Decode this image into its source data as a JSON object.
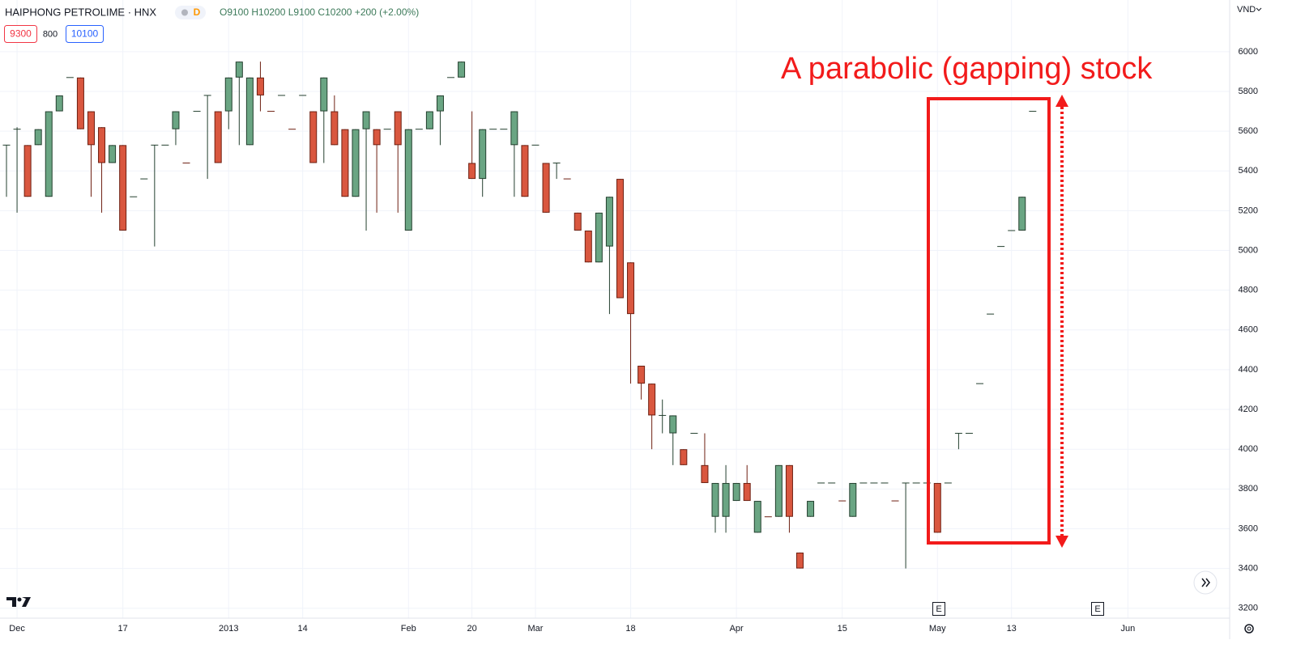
{
  "header": {
    "symbol": "HAIPHONG PETROLIME · HNX",
    "interval": "D",
    "ohlc": "O9100 H10200 L9100 C10200 +200 (+2.00%)",
    "bid": "9300",
    "spread": "800",
    "ask": "10100"
  },
  "annotation": {
    "text": "A parabolic (gapping) stock"
  },
  "events": [
    "E",
    "E"
  ],
  "chart_data": {
    "type": "candlestick",
    "currency": "VND",
    "up_color": "#6aa583",
    "down_color": "#d9573f",
    "up_border": "#24402f",
    "down_border": "#6e2012",
    "grid": true,
    "ylim": [
      3150,
      6260
    ],
    "yticks": [
      3200,
      3400,
      3600,
      3800,
      4000,
      4200,
      4400,
      4600,
      4800,
      5000,
      5200,
      5400,
      5600,
      5800,
      6000
    ],
    "categories": [
      null,
      "Dec",
      null,
      null,
      null,
      null,
      null,
      null,
      null,
      null,
      null,
      "17",
      null,
      null,
      null,
      null,
      null,
      null,
      null,
      null,
      null,
      "2013",
      null,
      null,
      null,
      null,
      null,
      null,
      "14",
      null,
      null,
      null,
      null,
      null,
      null,
      null,
      null,
      null,
      "Feb",
      null,
      null,
      null,
      null,
      null,
      "20",
      null,
      null,
      null,
      null,
      null,
      "Mar",
      null,
      null,
      null,
      null,
      null,
      null,
      null,
      null,
      "18",
      null,
      null,
      null,
      null,
      null,
      null,
      null,
      null,
      null,
      "Apr",
      null,
      null,
      null,
      null,
      null,
      null,
      null,
      null,
      null,
      "15",
      null,
      null,
      null,
      null,
      null,
      null,
      null,
      null,
      "May",
      null,
      null,
      null,
      null,
      null,
      null,
      "13",
      null,
      null,
      null,
      null,
      null,
      null,
      null,
      null,
      null,
      null,
      "Jun",
      null,
      null,
      null,
      null,
      null,
      null,
      null,
      null,
      null
    ],
    "open": [
      5530,
      5610,
      5530,
      5530,
      5270,
      5700,
      5870,
      5870,
      5700,
      5620,
      5440,
      5530,
      5270,
      5360,
      5530,
      5530,
      5610,
      5440,
      5700,
      5780,
      5700,
      5700,
      5870,
      5530,
      5870,
      5700,
      5780,
      5610,
      5780,
      5700,
      5700,
      5700,
      5610,
      5270,
      5610,
      5610,
      5610,
      5700,
      5100,
      5610,
      5610,
      5700,
      5870,
      5870,
      5440,
      5360,
      5610,
      5610,
      5530,
      5530,
      5530,
      5440,
      5440,
      5360,
      5190,
      5100,
      4940,
      5020,
      5360,
      4940,
      4420,
      4330,
      4170,
      4080,
      4000,
      4080,
      3920,
      3660,
      3660,
      3740,
      3830,
      3580,
      3660,
      3660,
      3920,
      3480,
      3660,
      3830,
      3830,
      3740,
      3660,
      3830,
      3830,
      3830,
      3740,
      3830,
      3830,
      3830,
      3830,
      3830,
      4080,
      4080,
      4330,
      4680,
      5020,
      5100,
      5100,
      5700,
      null,
      null,
      null,
      null,
      null,
      null,
      null,
      null,
      null,
      null,
      null,
      null,
      null,
      null,
      null,
      null,
      null,
      null
    ],
    "high": [
      5530,
      5620,
      5530,
      5610,
      5700,
      5780,
      5870,
      5870,
      5700,
      5620,
      5530,
      5530,
      5270,
      5360,
      5530,
      5530,
      5700,
      5440,
      5700,
      5780,
      5700,
      5870,
      5950,
      5870,
      5950,
      5700,
      5780,
      5610,
      5780,
      5700,
      5870,
      5780,
      5610,
      5610,
      5700,
      5610,
      5610,
      5700,
      5610,
      5610,
      5700,
      5780,
      5870,
      5950,
      5700,
      5610,
      5610,
      5610,
      5700,
      5530,
      5530,
      5440,
      5440,
      5360,
      5190,
      5100,
      5190,
      5270,
      5360,
      4940,
      4420,
      4330,
      4250,
      4170,
      4000,
      4080,
      4080,
      3830,
      3920,
      3830,
      3920,
      3740,
      3660,
      3920,
      3920,
      3480,
      3740,
      3830,
      3830,
      3740,
      3830,
      3830,
      3830,
      3830,
      3740,
      3830,
      3830,
      3830,
      3830,
      3830,
      4080,
      4080,
      4330,
      4680,
      5020,
      5100,
      5270,
      5700,
      null,
      null,
      null,
      null,
      null,
      null,
      null,
      null,
      null,
      null,
      null,
      null,
      null,
      null,
      null,
      null,
      null,
      null
    ],
    "low": [
      5270,
      5190,
      5270,
      5530,
      5270,
      5700,
      5870,
      5610,
      5270,
      5190,
      5440,
      5100,
      5270,
      5360,
      5020,
      5530,
      5530,
      5440,
      5700,
      5360,
      5440,
      5610,
      5530,
      5530,
      5700,
      5700,
      5780,
      5610,
      5780,
      5440,
      5440,
      5530,
      5270,
      5270,
      5100,
      5190,
      5610,
      5190,
      5100,
      5610,
      5610,
      5530,
      5870,
      5870,
      5360,
      5270,
      5610,
      5610,
      5270,
      5270,
      5530,
      5190,
      5360,
      5360,
      5100,
      4940,
      4940,
      4680,
      4760,
      4330,
      4250,
      4000,
      4080,
      3920,
      3920,
      4080,
      3830,
      3580,
      3580,
      3740,
      3740,
      3580,
      3660,
      3660,
      3580,
      3400,
      3660,
      3830,
      3830,
      3740,
      3660,
      3830,
      3830,
      3830,
      3740,
      3400,
      3830,
      3830,
      3580,
      3830,
      4000,
      4080,
      4330,
      4680,
      5020,
      5100,
      5100,
      5700,
      null,
      null,
      null,
      null,
      null,
      null,
      null,
      null,
      null,
      null,
      null,
      null,
      null,
      null,
      null,
      null,
      null,
      null
    ],
    "close": [
      5530,
      5610,
      5270,
      5610,
      5700,
      5780,
      5870,
      5610,
      5530,
      5440,
      5530,
      5100,
      5270,
      5360,
      5530,
      5530,
      5700,
      5440,
      5700,
      5780,
      5440,
      5870,
      5950,
      5870,
      5780,
      5700,
      5780,
      5610,
      5780,
      5440,
      5870,
      5530,
      5270,
      5610,
      5700,
      5530,
      5610,
      5530,
      5610,
      5610,
      5700,
      5780,
      5870,
      5950,
      5360,
      5610,
      5610,
      5610,
      5700,
      5270,
      5530,
      5190,
      5440,
      5360,
      5100,
      4940,
      5190,
      5270,
      4760,
      4680,
      4330,
      4170,
      4170,
      4170,
      3920,
      4080,
      3830,
      3830,
      3830,
      3830,
      3740,
      3740,
      3660,
      3920,
      3660,
      3400,
      3740,
      3830,
      3830,
      3740,
      3830,
      3830,
      3830,
      3830,
      3740,
      3830,
      3830,
      3830,
      3580,
      3830,
      4080,
      4080,
      4330,
      4680,
      5020,
      5100,
      5270,
      5700,
      null,
      null,
      null,
      null,
      null,
      null,
      null,
      null,
      null,
      null,
      null,
      null,
      null,
      null,
      null,
      null,
      null,
      null
    ]
  }
}
